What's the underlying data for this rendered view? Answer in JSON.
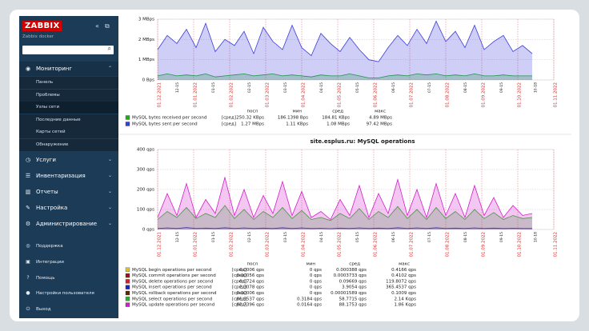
{
  "sidebar": {
    "logo": "ZABBIX",
    "server": "Zabbix docker",
    "menu": [
      {
        "label": "Мониторинг",
        "icon": "eye",
        "items": [
          "Панель",
          "Проблемы",
          "Узлы сети",
          "Последние данные",
          "Карты сетей",
          "Обнаружение"
        ]
      },
      {
        "label": "Услуги",
        "icon": "clock"
      },
      {
        "label": "Инвентаризация",
        "icon": "list"
      },
      {
        "label": "Отчеты",
        "icon": "chart"
      },
      {
        "label": "Настройка",
        "icon": "wrench"
      },
      {
        "label": "Администрирование",
        "icon": "gear"
      }
    ],
    "footer": [
      {
        "label": "Поддержка",
        "icon": "support"
      },
      {
        "label": "Интеграции",
        "icon": "integrations"
      },
      {
        "label": "Помощь",
        "icon": "help"
      },
      {
        "label": "Настройки пользователя",
        "icon": "user"
      },
      {
        "label": "Выход",
        "icon": "power"
      }
    ]
  },
  "graphs": [
    {
      "type": "line",
      "ylim": [
        0,
        3
      ],
      "yticks": [
        {
          "value": 0,
          "label": "0 Bps"
        },
        {
          "value": 1,
          "label": "1 MBps"
        },
        {
          "value": 2,
          "label": "2 MBps"
        },
        {
          "value": 3,
          "label": "3 MBps"
        }
      ],
      "date_labels": [
        "01.12.2021",
        "01.01.2022",
        "01.02.2022",
        "01.03.2022",
        "01.04.2022",
        "01.05.2022",
        "01.06.2022",
        "01.07.2022",
        "01.08.2022",
        "01.09.2022",
        "01.10.2022",
        "01.11.2022"
      ],
      "time_labels": [
        "12-15",
        "01-15",
        "02-15",
        "03-15",
        "04-15",
        "05-15",
        "06-15",
        "07-15",
        "08-15",
        "09-15",
        "10-18"
      ],
      "legend": {
        "header": [
          "посл",
          "мин",
          "сред",
          "макс"
        ],
        "rows": [
          {
            "name": "MySQL bytes received per second",
            "color": "#1aaf1a",
            "func": "[сред]",
            "last": "250.32 KBps",
            "min": "186.1398 Bps",
            "avg": "184.81 KBps",
            "max": "4.89 MBps",
            "values": [
              0.2,
              0.3,
              0.2,
              0.25,
              0.2,
              0.3,
              0.15,
              0.2,
              0.25,
              0.3,
              0.2,
              0.25,
              0.3,
              0.2,
              0.25,
              0.2,
              0.15,
              0.25,
              0.2,
              0.2,
              0.3,
              0.2,
              0.1,
              0.1,
              0.2,
              0.25,
              0.2,
              0.3,
              0.25,
              0.3,
              0.2,
              0.25,
              0.2,
              0.3,
              0.2,
              0.2,
              0.25,
              0.2,
              0.2,
              0.2
            ]
          },
          {
            "name": "MySQL bytes sent per second",
            "color": "#3b3bdc",
            "func": "[сред]",
            "last": "1.27 MBps",
            "min": "1.11 KBps",
            "avg": "1.08 MBps",
            "max": "97.42 MBps",
            "values": [
              1.5,
              2.2,
              1.8,
              2.5,
              1.6,
              2.8,
              1.4,
              2.0,
              1.7,
              2.4,
              1.3,
              2.6,
              1.9,
              1.5,
              2.7,
              1.6,
              1.2,
              2.3,
              1.8,
              1.4,
              2.1,
              1.5,
              1.0,
              0.9,
              1.6,
              2.2,
              1.7,
              2.5,
              1.8,
              2.9,
              1.9,
              2.4,
              1.6,
              2.7,
              1.5,
              1.9,
              2.2,
              1.4,
              1.7,
              1.3
            ]
          }
        ]
      }
    },
    {
      "type": "line",
      "title": "site.esplus.ru: MySQL operations",
      "ylim": [
        0,
        400
      ],
      "yticks": [
        {
          "value": 0,
          "label": "0 qps"
        },
        {
          "value": 100,
          "label": "100 qps"
        },
        {
          "value": 200,
          "label": "200 qps"
        },
        {
          "value": 300,
          "label": "300 qps"
        },
        {
          "value": 400,
          "label": "400 qps"
        }
      ],
      "date_labels": [
        "01.12.2021",
        "01.01.2022",
        "01.02.2022",
        "01.03.2022",
        "01.04.2022",
        "01.05.2022",
        "01.06.2022",
        "01.07.2022",
        "01.08.2022",
        "01.09.2022",
        "01.10.2022",
        "01.11.2022"
      ],
      "time_labels": [
        "12-15",
        "01-15",
        "02-15",
        "03-15",
        "04-15",
        "05-15",
        "06-15",
        "07-15",
        "08-15",
        "09-15",
        "10-18"
      ],
      "legend": {
        "header": [
          "посл",
          "мин",
          "сред",
          "макс"
        ],
        "rows": [
          {
            "name": "MySQL begin operations per second",
            "color": "#e0c21c",
            "func": "[сред]",
            "last": "0.0006 qps",
            "min": "0 qps",
            "avg": "0.000388 qps",
            "max": "0.4166 qps"
          },
          {
            "name": "MySQL commit operations per second",
            "color": "#8b1a1a",
            "func": "[сред]",
            "last": "0.00056 qps",
            "min": "0 qps",
            "avg": "0.0003733 qps",
            "max": "0.4102 qps"
          },
          {
            "name": "MySQL delete operations per second",
            "color": "#e02020",
            "func": "[сред]",
            "last": "0.0724 qps",
            "min": "0 qps",
            "avg": "0.09669 qps",
            "max": "119.8072 qps"
          },
          {
            "name": "MySQL insert operations per second",
            "color": "#2020d0",
            "func": "[сред]",
            "last": "2.3078 qps",
            "min": "0 qps",
            "avg": "3.9054 qps",
            "max": "365.4537 qps",
            "values": [
              5,
              8,
              5,
              10,
              5,
              7,
              5,
              9,
              5,
              8,
              5,
              7,
              5,
              9,
              5,
              8,
              5,
              6,
              4,
              7,
              5,
              8,
              5,
              7,
              5,
              9,
              5,
              8,
              5,
              9,
              5,
              7,
              5,
              8,
              5,
              7,
              5,
              6,
              5,
              5
            ]
          },
          {
            "name": "MySQL rollback operations per second",
            "color": "#5a2a00",
            "func": "[сред]",
            "last": "0.00006 qps",
            "min": "0 qps",
            "avg": "0.00001589 qps",
            "max": "0.1009 qps"
          },
          {
            "name": "MySQL select operations per second",
            "color": "#22b822",
            "func": "[сред]",
            "last": "81.9537 qps",
            "min": "0.3184 qps",
            "avg": "58.7715 qps",
            "max": "2.14 Kqps",
            "values": [
              50,
              90,
              60,
              110,
              55,
              80,
              60,
              120,
              55,
              100,
              50,
              90,
              60,
              110,
              55,
              95,
              50,
              60,
              45,
              80,
              55,
              105,
              50,
              90,
              60,
              115,
              55,
              100,
              50,
              110,
              55,
              90,
              50,
              100,
              55,
              85,
              50,
              70,
              55,
              60
            ]
          },
          {
            "name": "MySQL update operations per second",
            "color": "#d020c8",
            "func": "[сред]",
            "last": "82.7396 qps",
            "min": "0.0164 qps",
            "avg": "88.1753 qps",
            "max": "1.86 Kqps",
            "values": [
              60,
              180,
              70,
              230,
              60,
              150,
              80,
              260,
              70,
              200,
              60,
              170,
              80,
              240,
              70,
              190,
              60,
              90,
              50,
              150,
              70,
              220,
              60,
              180,
              80,
              250,
              70,
              200,
              60,
              230,
              70,
              180,
              60,
              220,
              70,
              160,
              60,
              120,
              70,
              80
            ]
          }
        ]
      }
    }
  ]
}
